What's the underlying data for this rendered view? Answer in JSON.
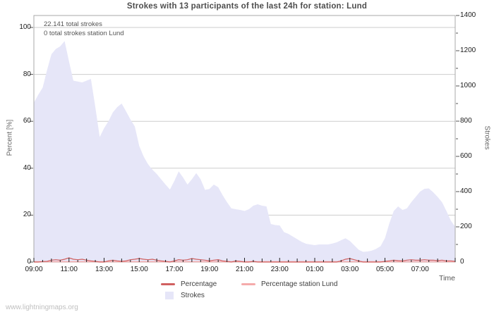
{
  "title": "Strokes with 13 participants of the last 24h for station: Lund",
  "annotations": {
    "total_strokes": "22.141 total strokes",
    "station_total_strokes": "0 total strokes station Lund"
  },
  "watermark": "www.lightningmaps.org",
  "axes": {
    "left": {
      "label": "Percent  [%]",
      "ticks": [
        0,
        20,
        40,
        60,
        80,
        100
      ]
    },
    "right": {
      "label": "Strokes",
      "ticks": [
        0,
        200,
        400,
        600,
        800,
        1000,
        1200,
        1400
      ],
      "minor_step": 100
    },
    "x": {
      "label": "Time",
      "tick_labels": [
        "09:00",
        "11:00",
        "13:00",
        "15:00",
        "17:00",
        "19:00",
        "21:00",
        "23:00",
        "01:00",
        "03:00",
        "05:00",
        "07:00"
      ]
    }
  },
  "legend": [
    {
      "label": "Percentage",
      "type": "line",
      "color": "#d06060"
    },
    {
      "label": "Percentage station Lund",
      "type": "line",
      "color": "#f5abab"
    },
    {
      "label": "Strokes",
      "type": "area",
      "color": "#e6e6f8"
    }
  ],
  "colors": {
    "area_fill": "#e6e6f8",
    "percentage_line": "#d06060",
    "station_line": "#f5abab",
    "grid": "#cdcdcd",
    "plot_border": "#a8a8a8",
    "tick": "#222222"
  },
  "chart_data": {
    "type": "area",
    "title": "Strokes with 13 participants of the last 24h for station: Lund",
    "xlabel": "Time",
    "ylabel_left": "Percent [%]",
    "ylabel_right": "Strokes",
    "y_left_range": [
      0,
      100
    ],
    "y_right_range": [
      0,
      1400
    ],
    "grid": "horizontal-only",
    "legend_position": "bottom",
    "x": [
      "09:00",
      "09:15",
      "09:30",
      "09:45",
      "10:00",
      "10:15",
      "10:30",
      "10:45",
      "11:00",
      "11:15",
      "11:30",
      "11:45",
      "12:00",
      "12:15",
      "12:30",
      "12:45",
      "13:00",
      "13:15",
      "13:30",
      "13:45",
      "14:00",
      "14:15",
      "14:30",
      "14:45",
      "15:00",
      "15:15",
      "15:30",
      "15:45",
      "16:00",
      "16:15",
      "16:30",
      "16:45",
      "17:00",
      "17:15",
      "17:30",
      "17:45",
      "18:00",
      "18:15",
      "18:30",
      "18:45",
      "19:00",
      "19:15",
      "19:30",
      "19:45",
      "20:00",
      "20:15",
      "20:30",
      "20:45",
      "21:00",
      "21:15",
      "21:30",
      "21:45",
      "22:00",
      "22:15",
      "22:30",
      "22:45",
      "23:00",
      "23:15",
      "23:30",
      "23:45",
      "00:00",
      "00:15",
      "00:30",
      "00:45",
      "01:00",
      "01:15",
      "01:30",
      "01:45",
      "02:00",
      "02:15",
      "02:30",
      "02:45",
      "03:00",
      "03:15",
      "03:30",
      "03:45",
      "04:00",
      "04:15",
      "04:30",
      "04:45",
      "05:00",
      "05:15",
      "05:30",
      "05:45",
      "06:00",
      "06:15",
      "06:30",
      "06:45",
      "07:00",
      "07:15",
      "07:30",
      "07:45",
      "08:00",
      "08:15",
      "08:30",
      "08:45",
      "09:00"
    ],
    "series": [
      {
        "name": "Strokes",
        "axis": "right",
        "style": "area",
        "values": [
          905,
          950,
          990,
          1090,
          1180,
          1210,
          1225,
          1255,
          1140,
          1030,
          1025,
          1020,
          1030,
          1040,
          880,
          710,
          760,
          800,
          850,
          880,
          900,
          856,
          810,
          770,
          660,
          600,
          556,
          525,
          500,
          470,
          440,
          412,
          460,
          515,
          480,
          440,
          470,
          505,
          470,
          410,
          415,
          440,
          425,
          380,
          340,
          305,
          300,
          296,
          290,
          300,
          320,
          328,
          320,
          316,
          216,
          210,
          208,
          170,
          160,
          145,
          130,
          115,
          104,
          100,
          96,
          100,
          100,
          100,
          105,
          112,
          124,
          135,
          120,
          95,
          70,
          58,
          60,
          65,
          75,
          90,
          136,
          220,
          290,
          316,
          296,
          305,
          340,
          370,
          400,
          416,
          418,
          396,
          370,
          340,
          290,
          236,
          200
        ]
      },
      {
        "name": "Percentage",
        "axis": "left",
        "style": "line",
        "values": [
          0,
          0,
          0.2,
          0.3,
          0.8,
          1.0,
          0.8,
          1.2,
          1.8,
          1.2,
          1.0,
          1.2,
          0.8,
          0.5,
          0.3,
          0,
          0,
          0.5,
          0.8,
          0.5,
          0.3,
          0.5,
          1.0,
          1.2,
          1.5,
          1.2,
          1.0,
          1.2,
          0.8,
          0.5,
          0.3,
          0,
          0.5,
          1.0,
          0.8,
          1.0,
          1.5,
          1.2,
          1.0,
          0.8,
          0.5,
          0.8,
          1.0,
          0.5,
          0.3,
          0,
          0.5,
          0.3,
          0,
          0,
          0.3,
          0,
          0,
          0,
          0,
          0,
          0,
          0,
          0,
          0,
          0,
          0,
          0,
          0,
          0,
          0,
          0,
          0,
          0,
          0,
          0.5,
          1.2,
          1.5,
          1.0,
          0.5,
          0,
          0,
          0,
          0,
          0,
          0.3,
          0.5,
          0.8,
          0.6,
          0.5,
          0.8,
          1.0,
          0.8,
          0.8,
          1.0,
          0.8,
          0.8,
          0.6,
          0.8,
          0.5,
          0.5,
          0.3
        ]
      },
      {
        "name": "Percentage station Lund",
        "axis": "left",
        "style": "line",
        "values": [
          0,
          0,
          0,
          0,
          0,
          0,
          0,
          0,
          0,
          0,
          0,
          0,
          0,
          0,
          0,
          0,
          0,
          0,
          0,
          0,
          0,
          0,
          0,
          0,
          0,
          0,
          0,
          0,
          0,
          0,
          0,
          0,
          0,
          0,
          0,
          0,
          0,
          0,
          0,
          0,
          0,
          0,
          0,
          0,
          0,
          0,
          0,
          0,
          0,
          0,
          0,
          0,
          0,
          0,
          0,
          0,
          0,
          0,
          0,
          0,
          0,
          0,
          0,
          0,
          0,
          0,
          0,
          0,
          0,
          0,
          0,
          0,
          0,
          0,
          0,
          0,
          0,
          0,
          0,
          0,
          0,
          0,
          0,
          0,
          0,
          0,
          0,
          0,
          0,
          0,
          0,
          0,
          0,
          0,
          0,
          0,
          0
        ]
      }
    ]
  }
}
